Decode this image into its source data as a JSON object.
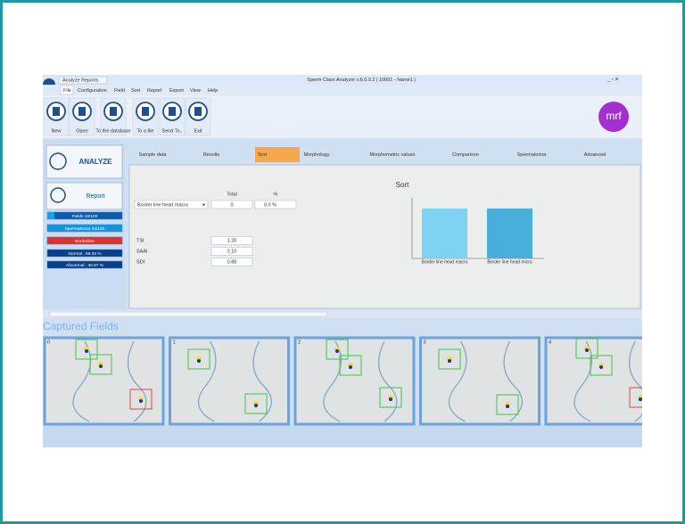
{
  "window": {
    "tab": "Analyze Reports",
    "title": "Sperm Class Analyzer v.6.0.0.2 | 10001 - Name1 |"
  },
  "menu": [
    "File",
    "Configuration",
    "Field",
    "Sort",
    "Report",
    "Export",
    "View",
    "Help"
  ],
  "toolbar": [
    "New",
    "Open",
    "To the database",
    "To a file",
    "Send To..",
    "Exit"
  ],
  "logo": "mrf",
  "side": {
    "analyze": "ANALYZE",
    "report": "Report",
    "status": [
      "Fields 10/100",
      "Spermatozoa 24/100",
      "Borderline",
      "Normal : 59.33 %",
      "Abnormal : 40.67 %"
    ]
  },
  "tabs": [
    "Sample data",
    "Results",
    "Sort",
    "Morphology",
    "Morphometric values",
    "Comparison",
    "Spermatozoa",
    "Advanced"
  ],
  "sort": {
    "headers": [
      "Total",
      "%"
    ],
    "selector": "Border line head macro",
    "total": "0",
    "percent": "0.0 %",
    "indices": [
      {
        "label": "TSI",
        "value": "1.20"
      },
      {
        "label": "SAAI",
        "value": "2.10"
      },
      {
        "label": "SDI",
        "value": "0.88"
      }
    ],
    "chart_title": "Sort",
    "chart_labels": [
      "Border line head macro",
      "Border line head micro"
    ]
  },
  "captured": {
    "title": "Captured Fields",
    "fields": [
      "0",
      "1",
      "2",
      "3",
      "4"
    ]
  }
}
